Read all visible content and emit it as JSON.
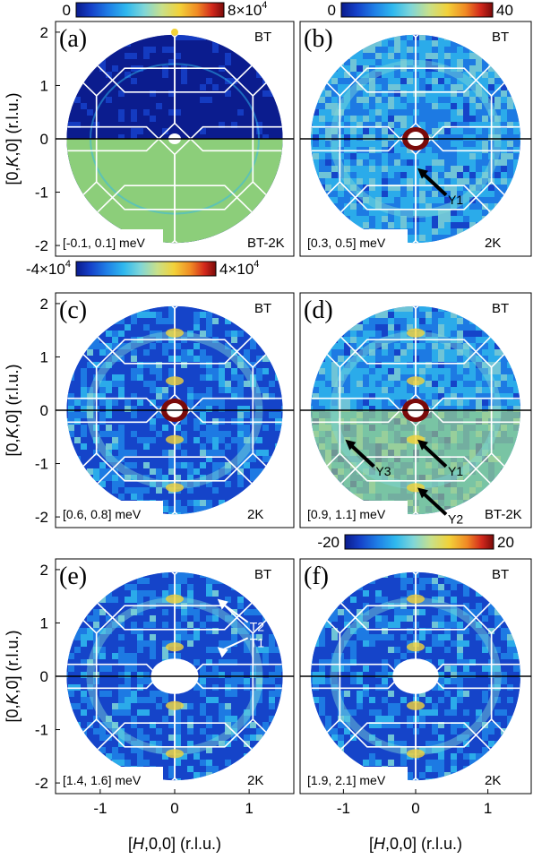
{
  "colors": {
    "cmap": [
      "#0a1b8c",
      "#1540c8",
      "#1f7fe6",
      "#2fb8ee",
      "#7fd6d8",
      "#c8e08a",
      "#f2d23a",
      "#f08a24",
      "#d2281c",
      "#7a0a0a"
    ],
    "lower_green": "#8cce7a",
    "bz_lines": "#ffffff",
    "axis_line": "#000000"
  },
  "colorbars": [
    {
      "min": "0",
      "max": "8×10",
      "max_exp": "4"
    },
    {
      "min": "0",
      "max": "40"
    },
    {
      "min": "-4×10",
      "min_exp": "4",
      "max": "4×10",
      "max_exp": "4"
    },
    {
      "min": "-20",
      "max": "20"
    }
  ],
  "chart_data": [
    {
      "type": "heatmap",
      "panel": "(a)",
      "energy_window": "[-0.1, 0.1] meV",
      "upper_label": "BT",
      "lower_label": "BT-2K",
      "xlim": [
        -1.6,
        1.6
      ],
      "ylim": [
        -2.2,
        2.2
      ],
      "annotations": []
    },
    {
      "type": "heatmap",
      "panel": "(b)",
      "energy_window": "[0.3, 0.5] meV",
      "upper_label": "BT",
      "lower_label": "2K",
      "xlim": [
        -1.6,
        1.6
      ],
      "ylim": [
        -2.2,
        2.2
      ],
      "annotations": [
        {
          "text": "Y1",
          "x": 0,
          "y": -0.55
        }
      ]
    },
    {
      "type": "heatmap",
      "panel": "(c)",
      "energy_window": "[0.6, 0.8] meV",
      "upper_label": "BT",
      "lower_label": "2K",
      "xlim": [
        -1.6,
        1.6
      ],
      "ylim": [
        -2.2,
        2.2
      ],
      "annotations": []
    },
    {
      "type": "heatmap",
      "panel": "(d)",
      "energy_window": "[0.9, 1.1] meV",
      "upper_label": "BT",
      "lower_label": "BT-2K",
      "xlim": [
        -1.6,
        1.6
      ],
      "ylim": [
        -2.2,
        2.2
      ],
      "annotations": [
        {
          "text": "Y3",
          "x": -1.0,
          "y": -0.55
        },
        {
          "text": "Y1",
          "x": 0,
          "y": -0.55
        },
        {
          "text": "Y2",
          "x": 0,
          "y": -1.45
        }
      ]
    },
    {
      "type": "heatmap",
      "panel": "(e)",
      "energy_window": "[1.4, 1.6] meV",
      "upper_label": "BT",
      "lower_label": "2K",
      "xlim": [
        -1.6,
        1.6
      ],
      "ylim": [
        -2.2,
        2.2
      ],
      "annotations": [
        {
          "text": "T2",
          "x": 0.55,
          "y": 1.45
        },
        {
          "text": "T1",
          "x": 0.55,
          "y": 0.55
        }
      ]
    },
    {
      "type": "heatmap",
      "panel": "(f)",
      "energy_window": "[1.9, 2.1] meV",
      "upper_label": "BT",
      "lower_label": "2K",
      "xlim": [
        -1.6,
        1.6
      ],
      "ylim": [
        -2.2,
        2.2
      ],
      "annotations": []
    }
  ],
  "axes": {
    "ylabel_pre": "[0,",
    "ylabel_var": "K",
    "ylabel_post": ",0] (r.l.u.)",
    "xlabel_pre": "[",
    "xlabel_var": "H",
    "xlabel_post": ",0,0] (r.l.u.)",
    "yticks": [
      "2",
      "1",
      "0",
      "-1",
      "-2"
    ],
    "xticks": [
      "-1",
      "0",
      "1"
    ]
  }
}
